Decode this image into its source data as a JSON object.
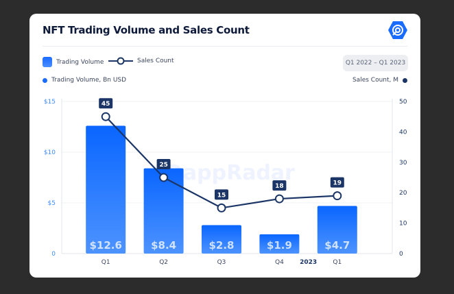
{
  "title": "NFT Trading Volume and Sales Count",
  "legend": {
    "bar_label": "Trading Volume",
    "line_label": "Sales Count"
  },
  "date_range": "Q1 2022 – Q1 2023",
  "left_axis_label": "Trading Volume, Bn USD",
  "right_axis_label": "Sales Count, M",
  "watermark": "DappRadar",
  "colors": {
    "bar": "#1a6bff",
    "line": "#1b3566",
    "left_axis": "#3d8bff",
    "right_axis": "#1b3566"
  },
  "chart_data": {
    "type": "bar+line",
    "categories": [
      "Q1",
      "Q2",
      "Q3",
      "Q4",
      "Q1"
    ],
    "year_marker": "2023",
    "series": [
      {
        "name": "Trading Volume",
        "type": "bar",
        "axis": "left",
        "values": [
          12.6,
          8.4,
          2.8,
          1.9,
          4.7
        ],
        "labels": [
          "$12.6",
          "$8.4",
          "$2.8",
          "$1.9",
          "$4.7"
        ]
      },
      {
        "name": "Sales Count",
        "type": "line",
        "axis": "right",
        "values": [
          45,
          25,
          15,
          18,
          19
        ],
        "labels": [
          "45",
          "25",
          "15",
          "18",
          "19"
        ]
      }
    ],
    "left_axis": {
      "ylim": [
        0,
        15
      ],
      "ticks": [
        "0",
        "$5",
        "$10",
        "$15"
      ],
      "tick_values": [
        0,
        5,
        10,
        15
      ]
    },
    "right_axis": {
      "ylim": [
        0,
        50
      ],
      "ticks": [
        "0",
        "10",
        "20",
        "30",
        "40",
        "50"
      ],
      "tick_values": [
        0,
        10,
        20,
        30,
        40,
        50
      ]
    },
    "grid": true
  }
}
